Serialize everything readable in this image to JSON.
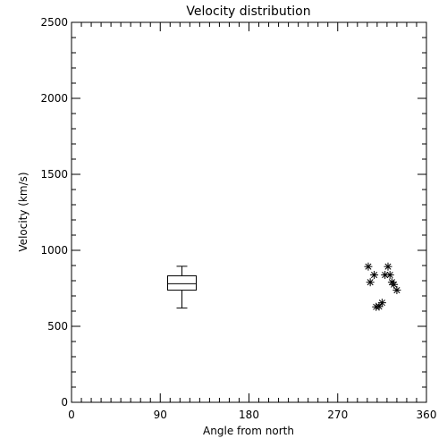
{
  "chart_data": {
    "type": "box-scatter",
    "title": "Velocity distribution",
    "xlabel": "Angle from north",
    "ylabel": "Velocity (km/s)",
    "xlim": [
      0,
      360
    ],
    "ylim": [
      0,
      2500
    ],
    "x_ticks": [
      0,
      90,
      180,
      270,
      360
    ],
    "y_ticks": [
      0,
      500,
      1000,
      1500,
      2000,
      2500
    ],
    "grid": false,
    "box": {
      "x": 112,
      "whisker_low": 620,
      "q1": 738,
      "median": 780,
      "q3": 832,
      "whisker_high": 895
    },
    "points": [
      {
        "x": 301,
        "y": 893
      },
      {
        "x": 303,
        "y": 790
      },
      {
        "x": 307,
        "y": 838
      },
      {
        "x": 309,
        "y": 628
      },
      {
        "x": 312,
        "y": 630
      },
      {
        "x": 315,
        "y": 655
      },
      {
        "x": 318,
        "y": 838
      },
      {
        "x": 321,
        "y": 893
      },
      {
        "x": 323,
        "y": 838
      },
      {
        "x": 325,
        "y": 790
      },
      {
        "x": 327,
        "y": 775
      },
      {
        "x": 330,
        "y": 738
      }
    ]
  }
}
